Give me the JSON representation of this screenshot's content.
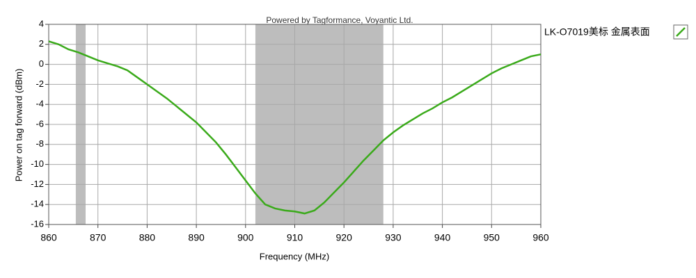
{
  "chart_data": {
    "type": "line",
    "title": "Powered by Tagformance, Voyantic Ltd.",
    "x_label": "Frequency (MHz)",
    "y_label": "Power on tag forward (dBm)",
    "x": [
      860,
      862,
      864,
      866,
      868,
      870,
      872,
      874,
      876,
      878,
      880,
      882,
      884,
      886,
      888,
      890,
      892,
      894,
      896,
      898,
      900,
      902,
      904,
      906,
      908,
      910,
      912,
      914,
      916,
      918,
      920,
      922,
      924,
      926,
      928,
      930,
      932,
      934,
      936,
      938,
      940,
      942,
      944,
      946,
      948,
      950,
      952,
      954,
      956,
      958,
      960
    ],
    "series": [
      {
        "name": "LK-O7019美标 金属表面",
        "color": "#3aaa1a",
        "values": [
          2.3,
          2.0,
          1.5,
          1.2,
          0.8,
          0.4,
          0.1,
          -0.2,
          -0.6,
          -1.3,
          -2.0,
          -2.7,
          -3.4,
          -4.2,
          -5.0,
          -5.8,
          -6.8,
          -7.8,
          -9.0,
          -10.3,
          -11.6,
          -12.9,
          -14.0,
          -14.4,
          -14.6,
          -14.7,
          -14.9,
          -14.6,
          -13.8,
          -12.8,
          -11.8,
          -10.7,
          -9.6,
          -8.6,
          -7.6,
          -6.8,
          -6.1,
          -5.5,
          -4.9,
          -4.4,
          -3.8,
          -3.3,
          -2.7,
          -2.1,
          -1.5,
          -0.9,
          -0.4,
          0.0,
          0.4,
          0.8,
          1.0
        ]
      }
    ],
    "bands": [
      [
        865.5,
        867.5
      ],
      [
        902,
        928
      ]
    ],
    "band_color": "#bdbdbd",
    "xlim": [
      860,
      960
    ],
    "xticks": [
      860,
      870,
      880,
      890,
      900,
      910,
      920,
      930,
      940,
      950,
      960
    ],
    "ylim": [
      -16,
      4
    ],
    "yticks": [
      4,
      2,
      0,
      -2,
      -4,
      -6,
      -8,
      -10,
      -12,
      -14,
      -16
    ],
    "grid": true,
    "legend": "right"
  }
}
